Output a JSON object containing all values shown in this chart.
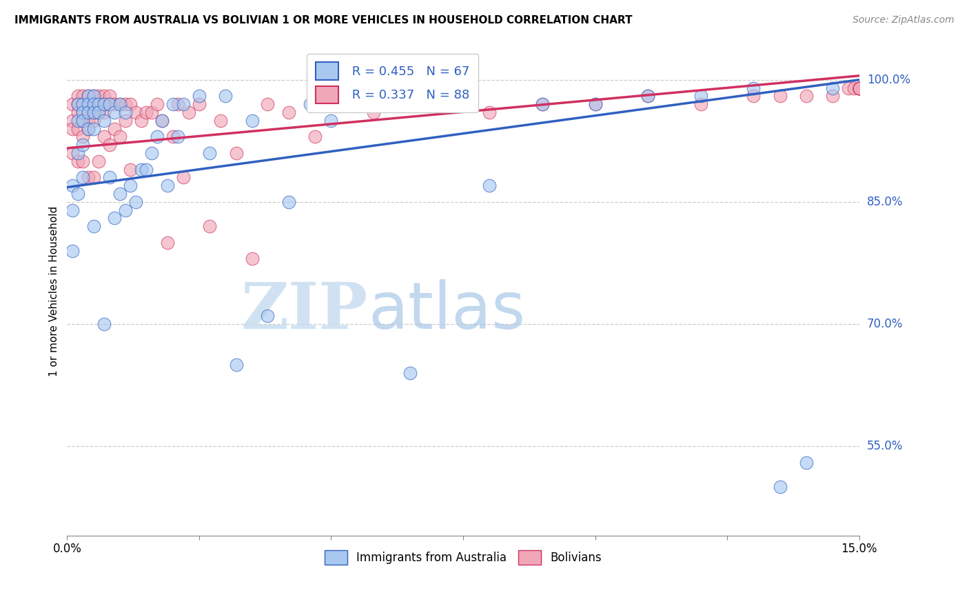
{
  "title": "IMMIGRANTS FROM AUSTRALIA VS BOLIVIAN 1 OR MORE VEHICLES IN HOUSEHOLD CORRELATION CHART",
  "source": "Source: ZipAtlas.com",
  "ylabel": "1 or more Vehicles in Household",
  "yticks": [
    "55.0%",
    "70.0%",
    "85.0%",
    "100.0%"
  ],
  "ytick_vals": [
    0.55,
    0.7,
    0.85,
    1.0
  ],
  "xlim": [
    0.0,
    0.15
  ],
  "ylim": [
    0.44,
    1.04
  ],
  "legend_entries": [
    "Immigrants from Australia",
    "Bolivians"
  ],
  "R_australia": 0.455,
  "N_australia": 67,
  "R_bolivian": 0.337,
  "N_bolivian": 88,
  "color_australia": "#a8c8f0",
  "color_bolivian": "#f0a8b8",
  "trendline_color_australia": "#3060c0",
  "trendline_color_bolivian": "#d03060",
  "watermark_zip": "ZIP",
  "watermark_atlas": "atlas",
  "aus_trend_x0": 0.0,
  "aus_trend_y0": 0.868,
  "aus_trend_x1": 0.15,
  "aus_trend_y1": 1.0,
  "bol_trend_x0": 0.0,
  "bol_trend_y0": 0.916,
  "bol_trend_x1": 0.15,
  "bol_trend_y1": 1.005,
  "australia_x": [
    0.001,
    0.001,
    0.001,
    0.002,
    0.002,
    0.002,
    0.002,
    0.003,
    0.003,
    0.003,
    0.003,
    0.003,
    0.004,
    0.004,
    0.004,
    0.004,
    0.005,
    0.005,
    0.005,
    0.005,
    0.005,
    0.006,
    0.006,
    0.007,
    0.007,
    0.007,
    0.008,
    0.008,
    0.009,
    0.009,
    0.01,
    0.01,
    0.011,
    0.011,
    0.012,
    0.013,
    0.014,
    0.015,
    0.016,
    0.017,
    0.018,
    0.019,
    0.02,
    0.021,
    0.022,
    0.025,
    0.027,
    0.03,
    0.032,
    0.035,
    0.038,
    0.042,
    0.046,
    0.05,
    0.055,
    0.06,
    0.065,
    0.072,
    0.08,
    0.09,
    0.1,
    0.11,
    0.12,
    0.13,
    0.135,
    0.14,
    0.145
  ],
  "australia_y": [
    0.87,
    0.84,
    0.79,
    0.97,
    0.95,
    0.91,
    0.86,
    0.97,
    0.96,
    0.95,
    0.92,
    0.88,
    0.98,
    0.97,
    0.96,
    0.94,
    0.98,
    0.97,
    0.96,
    0.94,
    0.82,
    0.97,
    0.96,
    0.97,
    0.95,
    0.7,
    0.97,
    0.88,
    0.96,
    0.83,
    0.97,
    0.86,
    0.96,
    0.84,
    0.87,
    0.85,
    0.89,
    0.89,
    0.91,
    0.93,
    0.95,
    0.87,
    0.97,
    0.93,
    0.97,
    0.98,
    0.91,
    0.98,
    0.65,
    0.95,
    0.71,
    0.85,
    0.97,
    0.95,
    0.97,
    0.97,
    0.64,
    0.97,
    0.87,
    0.97,
    0.97,
    0.98,
    0.98,
    0.99,
    0.5,
    0.53,
    0.99
  ],
  "bolivian_x": [
    0.001,
    0.001,
    0.001,
    0.001,
    0.002,
    0.002,
    0.002,
    0.002,
    0.002,
    0.003,
    0.003,
    0.003,
    0.003,
    0.003,
    0.003,
    0.004,
    0.004,
    0.004,
    0.004,
    0.004,
    0.004,
    0.005,
    0.005,
    0.005,
    0.005,
    0.005,
    0.006,
    0.006,
    0.006,
    0.006,
    0.007,
    0.007,
    0.007,
    0.007,
    0.008,
    0.008,
    0.008,
    0.009,
    0.009,
    0.01,
    0.01,
    0.011,
    0.011,
    0.012,
    0.012,
    0.013,
    0.014,
    0.015,
    0.016,
    0.017,
    0.018,
    0.019,
    0.02,
    0.021,
    0.022,
    0.023,
    0.025,
    0.027,
    0.029,
    0.032,
    0.035,
    0.038,
    0.042,
    0.047,
    0.052,
    0.058,
    0.064,
    0.072,
    0.08,
    0.09,
    0.1,
    0.11,
    0.12,
    0.13,
    0.135,
    0.14,
    0.145,
    0.148,
    0.149,
    0.15,
    0.15,
    0.15,
    0.15,
    0.15,
    0.15,
    0.15,
    0.15,
    0.15
  ],
  "bolivian_y": [
    0.97,
    0.95,
    0.94,
    0.91,
    0.98,
    0.97,
    0.96,
    0.94,
    0.9,
    0.98,
    0.97,
    0.96,
    0.95,
    0.93,
    0.9,
    0.98,
    0.97,
    0.96,
    0.95,
    0.94,
    0.88,
    0.98,
    0.97,
    0.96,
    0.95,
    0.88,
    0.98,
    0.97,
    0.96,
    0.9,
    0.98,
    0.97,
    0.96,
    0.93,
    0.98,
    0.97,
    0.92,
    0.97,
    0.94,
    0.97,
    0.93,
    0.97,
    0.95,
    0.97,
    0.89,
    0.96,
    0.95,
    0.96,
    0.96,
    0.97,
    0.95,
    0.8,
    0.93,
    0.97,
    0.88,
    0.96,
    0.97,
    0.82,
    0.95,
    0.91,
    0.78,
    0.97,
    0.96,
    0.93,
    0.97,
    0.96,
    0.97,
    0.97,
    0.96,
    0.97,
    0.97,
    0.98,
    0.97,
    0.98,
    0.98,
    0.98,
    0.98,
    0.99,
    0.99,
    0.99,
    0.99,
    0.99,
    0.99,
    0.99,
    0.99,
    0.99,
    0.99,
    0.99
  ]
}
